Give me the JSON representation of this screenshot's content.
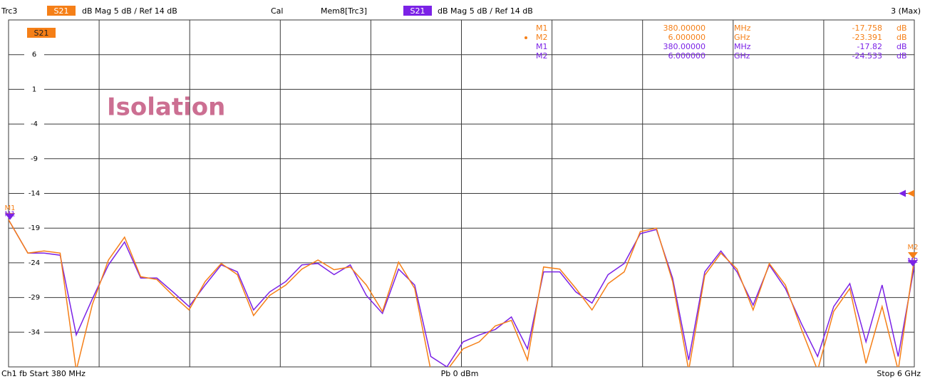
{
  "header": {
    "trace": "Trc3",
    "cal": "Cal",
    "sweep_info": "3 (Max)"
  },
  "footer": {
    "left": "Ch1  fb  Start  380 MHz",
    "center": "Pb  0 dBm",
    "right": "Stop  6 GHz"
  },
  "chart_data": {
    "type": "line",
    "annotation": "Isolation",
    "xlim": [
      0.38,
      6
    ],
    "ylim": [
      -39,
      11
    ],
    "yticks": [
      6,
      1,
      -4,
      -9,
      -14,
      -19,
      -24,
      -29,
      -34
    ],
    "grid": true,
    "x": [
      0.38,
      0.5,
      0.6,
      0.7,
      0.8,
      0.9,
      1.0,
      1.1,
      1.2,
      1.3,
      1.4,
      1.5,
      1.6,
      1.7,
      1.8,
      1.9,
      2.0,
      2.1,
      2.2,
      2.3,
      2.4,
      2.5,
      2.6,
      2.7,
      2.8,
      2.9,
      3.0,
      3.1,
      3.2,
      3.3,
      3.4,
      3.5,
      3.6,
      3.7,
      3.8,
      3.9,
      4.0,
      4.1,
      4.2,
      4.3,
      4.4,
      4.5,
      4.6,
      4.7,
      4.8,
      4.9,
      5.0,
      5.1,
      5.2,
      5.3,
      5.4,
      5.5,
      5.6,
      5.7,
      5.8,
      5.9,
      6.0
    ],
    "series": [
      {
        "name": "Trc3",
        "parameter": "S21",
        "format": "dB Mag  5 dB /  Ref  14 dB",
        "color": "#f57f17",
        "values": [
          -17.8,
          -22.6,
          -22.3,
          -22.6,
          -39.5,
          -30.0,
          -23.6,
          -20.3,
          -26.0,
          -26.4,
          -28.7,
          -30.8,
          -26.7,
          -24.1,
          -25.7,
          -31.6,
          -28.7,
          -27.2,
          -24.9,
          -23.6,
          -25.0,
          -24.6,
          -27.2,
          -31.0,
          -23.9,
          -27.7,
          -39.5,
          -39.5,
          -36.4,
          -35.4,
          -33.1,
          -32.3,
          -38.0,
          -24.6,
          -24.9,
          -27.7,
          -30.8,
          -27.0,
          -25.3,
          -19.5,
          -19.0,
          -26.7,
          -39.5,
          -25.8,
          -22.6,
          -24.9,
          -30.8,
          -24.1,
          -27.2,
          -33.6,
          -39.5,
          -31.0,
          -27.7,
          -38.5,
          -30.3,
          -39.5,
          -23.4
        ],
        "markers": [
          {
            "name": "M1",
            "x": {
              "value": 0.38,
              "label": "380.00000"
            },
            "x_unit": "MHz",
            "y": -17.758,
            "y_unit": "dB"
          },
          {
            "name": "M2",
            "x": {
              "value": 6,
              "label": "6.000000"
            },
            "x_unit": "GHz",
            "y": -23.391,
            "y_unit": "dB"
          }
        ]
      },
      {
        "name": "Mem8[Trc3]",
        "parameter": "S21",
        "format": "dB Mag  5 dB /  Ref  14 dB",
        "color": "#7b22e6",
        "values": [
          -17.8,
          -22.6,
          -22.6,
          -22.9,
          -34.4,
          -29.2,
          -24.3,
          -21.0,
          -26.2,
          -26.2,
          -28.2,
          -30.3,
          -27.2,
          -24.3,
          -25.3,
          -30.8,
          -28.2,
          -26.7,
          -24.3,
          -24.1,
          -25.7,
          -24.3,
          -28.7,
          -31.3,
          -24.9,
          -27.2,
          -37.5,
          -39.0,
          -35.4,
          -34.4,
          -33.6,
          -31.8,
          -36.4,
          -25.3,
          -25.3,
          -28.2,
          -29.8,
          -25.7,
          -24.1,
          -19.8,
          -19.2,
          -26.2,
          -38.0,
          -25.3,
          -22.3,
          -25.3,
          -30.1,
          -24.3,
          -27.7,
          -32.8,
          -37.5,
          -30.3,
          -27.0,
          -35.4,
          -27.2,
          -37.5,
          -24.5
        ],
        "markers": [
          {
            "name": "M1",
            "x": {
              "value": 0.38,
              "label": "380.00000"
            },
            "x_unit": "MHz",
            "y": -17.82,
            "y_unit": "dB"
          },
          {
            "name": "M2",
            "x": {
              "value": 6,
              "label": "6.000000"
            },
            "x_unit": "GHz",
            "y": -24.533,
            "y_unit": "dB"
          }
        ]
      }
    ]
  }
}
